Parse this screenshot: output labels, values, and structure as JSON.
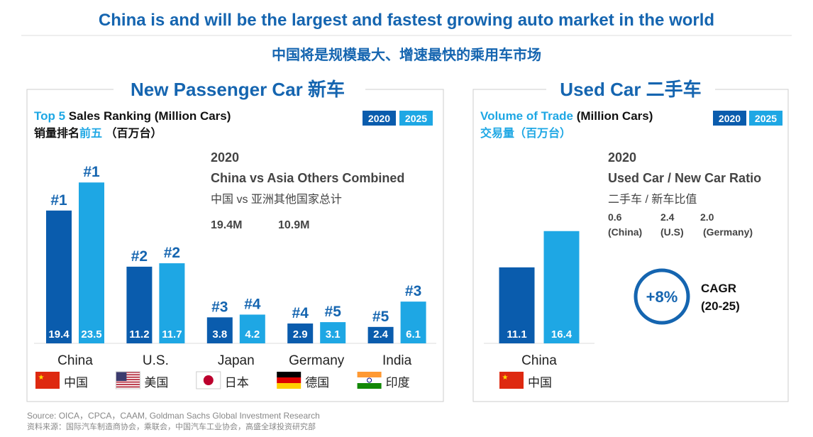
{
  "title": "China is and will be the largest and fastest growing auto market in the world",
  "subtitle": "中国将是规模最大、增速最快的乘用车市场",
  "chart_data": [
    {
      "type": "bar",
      "panel_title": "New Passenger Car 新车",
      "heading": [
        "Top 5",
        " Sales Ranking (Million Cars)"
      ],
      "heading_cn": [
        "销量排名",
        "前五",
        " （百万台）"
      ],
      "categories": [
        "China",
        "U.S.",
        "Japan",
        "Germany",
        "India"
      ],
      "categories_cn": [
        "中国",
        "美国",
        "日本",
        "德国",
        "印度"
      ],
      "series": [
        {
          "name": "2020",
          "color": "#0a5cad",
          "values": [
            19.4,
            11.2,
            3.8,
            2.9,
            2.4
          ],
          "ranks": [
            "#1",
            "#2",
            "#3",
            "#4",
            "#5"
          ]
        },
        {
          "name": "2025",
          "color": "#1ea7e4",
          "values": [
            23.5,
            11.7,
            4.2,
            3.1,
            6.1
          ],
          "ranks": [
            "#1",
            "#2",
            "#4",
            "#5",
            "#3"
          ]
        }
      ],
      "annotation": {
        "year": "2020",
        "title": "China vs Asia Others Combined",
        "title_cn": "中国 vs 亚洲其他国家总计",
        "values": [
          "19.4M",
          "10.9M"
        ]
      }
    },
    {
      "type": "bar",
      "panel_title": "Used Car 二手车",
      "heading": [
        "Volume of Trade",
        " (Million Cars)"
      ],
      "heading_cn": [
        "交易量（百万台）"
      ],
      "categories": [
        "China"
      ],
      "categories_cn": [
        "中国"
      ],
      "series": [
        {
          "name": "2020",
          "color": "#0a5cad",
          "values": [
            11.1
          ]
        },
        {
          "name": "2025",
          "color": "#1ea7e4",
          "values": [
            16.4
          ]
        }
      ],
      "annotation": {
        "year": "2020",
        "title": "Used Car / New Car Ratio",
        "title_cn": "二手车 / 新车比值",
        "ratios": [
          "0.6",
          "2.4",
          "2.0"
        ],
        "ratio_labels": [
          "(China)",
          "(U.S)",
          "(Germany)"
        ],
        "growth": "+8%",
        "growth_label": [
          "CAGR",
          "(20-25)"
        ]
      }
    }
  ],
  "source": [
    "Source: OICA，CPCA，CAAM, Goldman Sachs Global Investment Research",
    "资料来源：国际汽车制造商协会，乘联会，中国汽车工业协会，高盛全球投资研究部"
  ]
}
